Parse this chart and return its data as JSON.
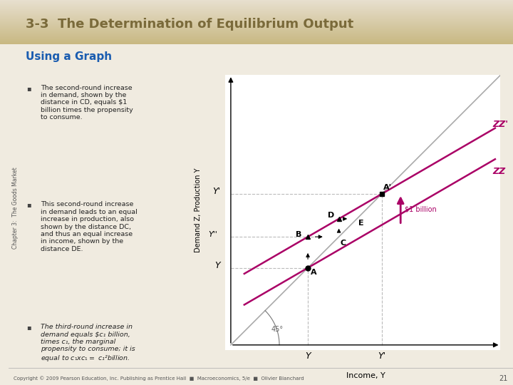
{
  "title": "3-3  The Determination of Equilibrium Output",
  "subtitle": "Using a Graph",
  "header_grad_left": "#C8B882",
  "header_grad_right": "#E8E0D0",
  "header_text_color": "#7A6A3A",
  "slide_bg": "#F0EBE0",
  "teal_bar_color": "#2D7D7A",
  "footer_text": "Copyright © 2009 Pearson Education, Inc. Publishing as Prentice Hall  ■  Macroeconomics, 5/e  ■  Olivier Blanchard",
  "footer_page": "21",
  "sidebar_label": "Chapter 3:  The Goods Market",
  "bullet_points": [
    "The second-round increase\nin demand, shown by the\ndistance in CD, equals $1\nbillion times the propensity\nto consume.",
    "This second-round increase\nin demand leads to an equal\nincrease in production, also\nshown by the distance DC,\nand thus an equal increase\nin income, shown by the\ndistance DE.",
    "The third-round increase in\ndemand equals $c₁ billion,\ntimes c₁, the marginal\npropensity to consume; it is\nequal to $c₁ x c₁ = $ c₁²billion."
  ],
  "bullet_italic": [
    false,
    false,
    true
  ],
  "graph": {
    "xmin": 0,
    "xmax": 10,
    "ymin": 0,
    "ymax": 10,
    "Y_val": 4.2,
    "Yprime_val": 7.2,
    "zz_intercept": 1.2,
    "zz_slope": 0.58,
    "zzprime_intercept": 2.35,
    "zzprime_slope": 0.58,
    "line45_color": "#AAAAAA",
    "zz_color": "#AA0066",
    "zzprime_color": "#AA0066",
    "dashed_color": "#BBBBBB",
    "arrow_color": "#AA0066",
    "xlabel": "Income, Y",
    "ylabel": "Demand Z, Production Y",
    "angle_label": "45°",
    "zz_label": "ZZ",
    "zzprime_label": "ZZ'"
  }
}
